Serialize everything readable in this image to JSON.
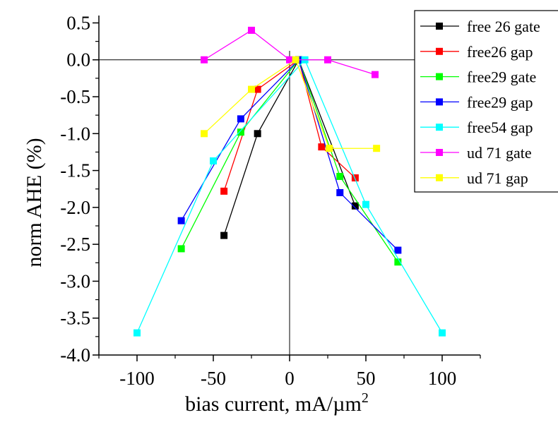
{
  "chart_data": {
    "type": "scatter",
    "title": "",
    "xlabel": "bias current, mA/µm",
    "xlabel_sup": "2",
    "ylabel": "norm AHE  (%)",
    "xlim": [
      -125,
      125
    ],
    "ylim": [
      -4.0,
      0.6
    ],
    "xticks": [
      -100,
      -50,
      0,
      50,
      100
    ],
    "xtick_labels": [
      "-100",
      "-50",
      "0",
      "50",
      "100"
    ],
    "yticks": [
      0.5,
      0.0,
      -0.5,
      -1.0,
      -1.5,
      -2.0,
      -2.5,
      -3.0,
      -3.5,
      -4.0
    ],
    "ytick_labels": [
      "0.5",
      "0.0",
      "-0.5",
      "-1.0",
      "-1.5",
      "-2.0",
      "-2.5",
      "-3.0",
      "-3.5",
      "-4.0"
    ],
    "grid": false,
    "legend_position": "top-right",
    "series": [
      {
        "name": "free 26 gate",
        "color": "#000000",
        "points": [
          [
            -43,
            -2.38
          ],
          [
            -21,
            -1.0
          ],
          [
            6,
            0.0
          ],
          [
            43,
            -1.98
          ]
        ]
      },
      {
        "name": "free26 gap",
        "color": "#ff0000",
        "points": [
          [
            -43,
            -1.78
          ],
          [
            -21,
            -0.4
          ],
          [
            6,
            0.0
          ],
          [
            21,
            -1.18
          ],
          [
            43,
            -1.6
          ]
        ]
      },
      {
        "name": "free29 gate",
        "color": "#00ff00",
        "points": [
          [
            -71,
            -2.56
          ],
          [
            -32,
            -0.98
          ],
          [
            6,
            0.0
          ],
          [
            33,
            -1.58
          ],
          [
            71,
            -2.74
          ]
        ]
      },
      {
        "name": "free29 gap",
        "color": "#0000ff",
        "points": [
          [
            -71,
            -2.18
          ],
          [
            -32,
            -0.8
          ],
          [
            6,
            0.0
          ],
          [
            33,
            -1.8
          ],
          [
            71,
            -2.58
          ]
        ]
      },
      {
        "name": "free54 gap",
        "color": "#00ffff",
        "points": [
          [
            -100,
            -3.7
          ],
          [
            -50,
            -1.37
          ],
          [
            10,
            0.0
          ],
          [
            50,
            -1.96
          ],
          [
            100,
            -3.7
          ]
        ]
      },
      {
        "name": "ud 71 gate",
        "color": "#ff00ff",
        "points": [
          [
            -56,
            0.0
          ],
          [
            -25,
            0.4
          ],
          [
            0,
            0.0
          ],
          [
            25,
            0.0
          ],
          [
            56,
            -0.2
          ]
        ]
      },
      {
        "name": "ud 71 gap",
        "color": "#ffff00",
        "points": [
          [
            -56,
            -1.0
          ],
          [
            -25,
            -0.4
          ],
          [
            4,
            0.0
          ],
          [
            26,
            -1.2
          ],
          [
            57,
            -1.2
          ]
        ]
      }
    ]
  }
}
